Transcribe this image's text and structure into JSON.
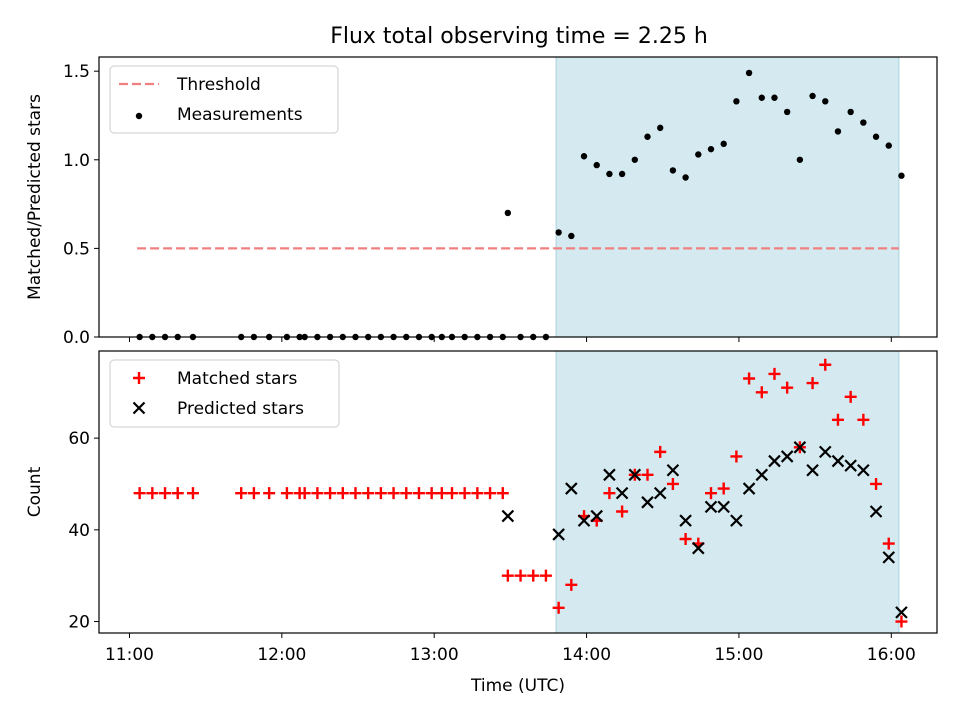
{
  "figure": {
    "title": "Flux total observing time = 2.25 h"
  },
  "chart_data": [
    {
      "type": "scatter",
      "panel": "top",
      "ylabel": "Matched/Predicted stars",
      "ylim": [
        0,
        1.58
      ],
      "xlim": [
        "10:48",
        "16:18"
      ],
      "yticks": [
        {
          "v": 0.0,
          "label": "0.0"
        },
        {
          "v": 0.5,
          "label": "0.5"
        },
        {
          "v": 1.0,
          "label": "1.0"
        },
        {
          "v": 1.5,
          "label": "1.5"
        }
      ],
      "shaded_region": [
        "13:48",
        "16:03"
      ],
      "threshold": {
        "name": "Threshold",
        "value": 0.5,
        "x": [
          "11:03",
          "16:03"
        ],
        "color": "#f08080"
      },
      "legend_position": "top-left",
      "legend": [
        {
          "label": "Threshold",
          "marker": "dashed-line",
          "color": "#f08080"
        },
        {
          "label": "Measurements",
          "marker": "dot",
          "color": "#000000"
        }
      ],
      "series": [
        {
          "name": "Measurements",
          "color": "#000000",
          "points": [
            [
              "11:04",
              0.0
            ],
            [
              "11:09",
              0.0
            ],
            [
              "11:14",
              0.0
            ],
            [
              "11:19",
              0.0
            ],
            [
              "11:25",
              0.0
            ],
            [
              "11:44",
              0.0
            ],
            [
              "11:49",
              0.0
            ],
            [
              "11:55",
              0.0
            ],
            [
              "12:02",
              0.0
            ],
            [
              "12:07",
              0.0
            ],
            [
              "12:09",
              0.0
            ],
            [
              "12:14",
              0.0
            ],
            [
              "12:19",
              0.0
            ],
            [
              "12:24",
              0.0
            ],
            [
              "12:29",
              0.0
            ],
            [
              "12:34",
              0.0
            ],
            [
              "12:39",
              0.0
            ],
            [
              "12:44",
              0.0
            ],
            [
              "12:49",
              0.0
            ],
            [
              "12:54",
              0.0
            ],
            [
              "12:59",
              0.0
            ],
            [
              "13:03",
              0.0
            ],
            [
              "13:07",
              0.0
            ],
            [
              "13:12",
              0.0
            ],
            [
              "13:17",
              0.0
            ],
            [
              "13:22",
              0.0
            ],
            [
              "13:27",
              0.0
            ],
            [
              "13:29",
              0.7
            ],
            [
              "13:34",
              0.0
            ],
            [
              "13:39",
              0.0
            ],
            [
              "13:44",
              0.0
            ],
            [
              "13:49",
              0.59
            ],
            [
              "13:54",
              0.57
            ],
            [
              "13:59",
              1.02
            ],
            [
              "14:04",
              0.97
            ],
            [
              "14:09",
              0.92
            ],
            [
              "14:14",
              0.92
            ],
            [
              "14:19",
              1.0
            ],
            [
              "14:24",
              1.13
            ],
            [
              "14:29",
              1.18
            ],
            [
              "14:34",
              0.94
            ],
            [
              "14:39",
              0.9
            ],
            [
              "14:44",
              1.03
            ],
            [
              "14:49",
              1.06
            ],
            [
              "14:54",
              1.09
            ],
            [
              "14:59",
              1.33
            ],
            [
              "15:04",
              1.49
            ],
            [
              "15:09",
              1.35
            ],
            [
              "15:14",
              1.35
            ],
            [
              "15:19",
              1.27
            ],
            [
              "15:24",
              1.0
            ],
            [
              "15:29",
              1.36
            ],
            [
              "15:34",
              1.33
            ],
            [
              "15:39",
              1.16
            ],
            [
              "15:44",
              1.27
            ],
            [
              "15:49",
              1.21
            ],
            [
              "15:54",
              1.13
            ],
            [
              "15:59",
              1.08
            ],
            [
              "16:04",
              0.91
            ]
          ]
        }
      ]
    },
    {
      "type": "scatter",
      "panel": "bottom",
      "xlabel": "Time (UTC)",
      "ylabel": "Count",
      "ylim": [
        17.5,
        79
      ],
      "xlim": [
        "10:48",
        "16:18"
      ],
      "xticks": [
        "11:00",
        "12:00",
        "13:00",
        "14:00",
        "15:00",
        "16:00"
      ],
      "yticks": [
        {
          "v": 20,
          "label": "20"
        },
        {
          "v": 40,
          "label": "40"
        },
        {
          "v": 60,
          "label": "60"
        }
      ],
      "shaded_region": [
        "13:48",
        "16:03"
      ],
      "legend_position": "top-left",
      "legend": [
        {
          "label": "Matched stars",
          "marker": "plus",
          "color": "#ff0000"
        },
        {
          "label": "Predicted stars",
          "marker": "cross",
          "color": "#000000"
        }
      ],
      "series": [
        {
          "name": "Matched stars",
          "color": "#ff0000",
          "points": [
            [
              "11:04",
              48
            ],
            [
              "11:09",
              48
            ],
            [
              "11:14",
              48
            ],
            [
              "11:19",
              48
            ],
            [
              "11:25",
              48
            ],
            [
              "11:44",
              48
            ],
            [
              "11:49",
              48
            ],
            [
              "11:55",
              48
            ],
            [
              "12:02",
              48
            ],
            [
              "12:07",
              48
            ],
            [
              "12:09",
              48
            ],
            [
              "12:14",
              48
            ],
            [
              "12:19",
              48
            ],
            [
              "12:24",
              48
            ],
            [
              "12:29",
              48
            ],
            [
              "12:34",
              48
            ],
            [
              "12:39",
              48
            ],
            [
              "12:44",
              48
            ],
            [
              "12:49",
              48
            ],
            [
              "12:54",
              48
            ],
            [
              "12:59",
              48
            ],
            [
              "13:03",
              48
            ],
            [
              "13:07",
              48
            ],
            [
              "13:12",
              48
            ],
            [
              "13:17",
              48
            ],
            [
              "13:22",
              48
            ],
            [
              "13:27",
              48
            ],
            [
              "13:29",
              30
            ],
            [
              "13:34",
              30
            ],
            [
              "13:39",
              30
            ],
            [
              "13:44",
              30
            ],
            [
              "13:49",
              23
            ],
            [
              "13:54",
              28
            ],
            [
              "13:59",
              43
            ],
            [
              "14:04",
              42
            ],
            [
              "14:09",
              48
            ],
            [
              "14:14",
              44
            ],
            [
              "14:19",
              52
            ],
            [
              "14:24",
              52
            ],
            [
              "14:29",
              57
            ],
            [
              "14:34",
              50
            ],
            [
              "14:39",
              38
            ],
            [
              "14:44",
              37
            ],
            [
              "14:49",
              48
            ],
            [
              "14:54",
              49
            ],
            [
              "14:59",
              56
            ],
            [
              "15:04",
              73
            ],
            [
              "15:09",
              70
            ],
            [
              "15:14",
              74
            ],
            [
              "15:19",
              71
            ],
            [
              "15:24",
              58
            ],
            [
              "15:29",
              72
            ],
            [
              "15:34",
              76
            ],
            [
              "15:39",
              64
            ],
            [
              "15:44",
              69
            ],
            [
              "15:49",
              64
            ],
            [
              "15:54",
              50
            ],
            [
              "15:59",
              37
            ],
            [
              "16:04",
              20
            ]
          ]
        },
        {
          "name": "Predicted stars",
          "color": "#000000",
          "points": [
            [
              "13:29",
              43
            ],
            [
              "13:49",
              39
            ],
            [
              "13:54",
              49
            ],
            [
              "13:59",
              42
            ],
            [
              "14:04",
              43
            ],
            [
              "14:09",
              52
            ],
            [
              "14:14",
              48
            ],
            [
              "14:19",
              52
            ],
            [
              "14:24",
              46
            ],
            [
              "14:29",
              48
            ],
            [
              "14:34",
              53
            ],
            [
              "14:39",
              42
            ],
            [
              "14:44",
              36
            ],
            [
              "14:49",
              45
            ],
            [
              "14:54",
              45
            ],
            [
              "14:59",
              42
            ],
            [
              "15:04",
              49
            ],
            [
              "15:09",
              52
            ],
            [
              "15:14",
              55
            ],
            [
              "15:19",
              56
            ],
            [
              "15:24",
              58
            ],
            [
              "15:29",
              53
            ],
            [
              "15:34",
              57
            ],
            [
              "15:39",
              55
            ],
            [
              "15:44",
              54
            ],
            [
              "15:49",
              53
            ],
            [
              "15:54",
              44
            ],
            [
              "15:59",
              34
            ],
            [
              "16:04",
              22
            ]
          ]
        }
      ]
    }
  ]
}
